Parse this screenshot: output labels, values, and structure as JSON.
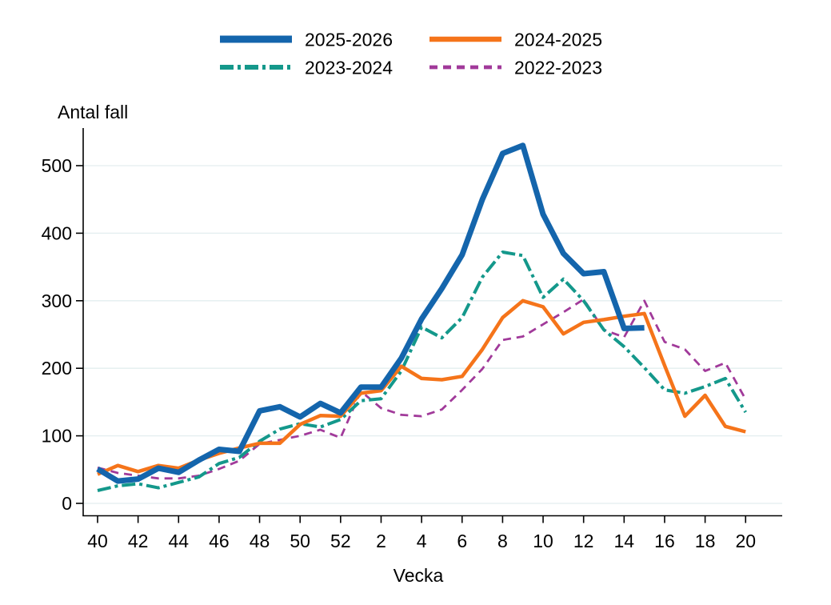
{
  "page": {
    "background": "#ffffff",
    "grid_color": "#e3eeef",
    "axis_color": "#000000"
  },
  "chart_data": {
    "type": "line",
    "title": "",
    "ylabel": "Antal fall",
    "xlabel": "Vecka",
    "ylim": [
      0,
      560
    ],
    "y_ticks": [
      0,
      100,
      200,
      300,
      400,
      500
    ],
    "grid": "horizontal",
    "legend_position": "top",
    "weeks": [
      40,
      41,
      42,
      43,
      44,
      45,
      46,
      47,
      48,
      49,
      50,
      51,
      52,
      1,
      2,
      3,
      4,
      5,
      6,
      7,
      8,
      9,
      10,
      11,
      12,
      13,
      14,
      15,
      16,
      17,
      18,
      19,
      20
    ],
    "x_tick_labels": [
      "40",
      "42",
      "44",
      "46",
      "48",
      "50",
      "52",
      "2",
      "4",
      "6",
      "8",
      "10",
      "12",
      "14",
      "16",
      "18",
      "20"
    ],
    "series": [
      {
        "name": "2025-2026",
        "color": "#1465AC",
        "style": "solid",
        "width": 7,
        "values": [
          51,
          33,
          36,
          52,
          46,
          64,
          80,
          77,
          137,
          143,
          128,
          148,
          134,
          172,
          172,
          215,
          273,
          318,
          368,
          450,
          518,
          530,
          428,
          370,
          340,
          343,
          259,
          260
        ]
      },
      {
        "name": "2024-2025",
        "color": "#F5741A",
        "style": "solid",
        "width": 4.5,
        "values": [
          43,
          56,
          47,
          56,
          52,
          64,
          74,
          82,
          89,
          89,
          117,
          130,
          129,
          163,
          167,
          203,
          185,
          183,
          188,
          228,
          275,
          300,
          291,
          251,
          268,
          272,
          277,
          281,
          204,
          129,
          160,
          114,
          106
        ]
      },
      {
        "name": "2023-2024",
        "color": "#14988B",
        "style": "dash-dot",
        "width": 4,
        "values": [
          19,
          26,
          29,
          23,
          31,
          39,
          59,
          68,
          92,
          110,
          118,
          113,
          124,
          152,
          155,
          196,
          261,
          245,
          275,
          335,
          372,
          367,
          305,
          332,
          300,
          257,
          232,
          201,
          168,
          163,
          173,
          185,
          135
        ]
      },
      {
        "name": "2022-2023",
        "color": "#A13A9A",
        "style": "dashed",
        "width": 2.8,
        "values": [
          53,
          45,
          41,
          37,
          37,
          41,
          51,
          63,
          88,
          94,
          100,
          109,
          97,
          166,
          141,
          131,
          129,
          139,
          168,
          199,
          242,
          247,
          265,
          283,
          302,
          257,
          246,
          300,
          239,
          228,
          196,
          208,
          154
        ]
      }
    ]
  },
  "legend": {
    "items": [
      "2025-2026",
      "2024-2025",
      "2023-2024",
      "2022-2023"
    ]
  }
}
